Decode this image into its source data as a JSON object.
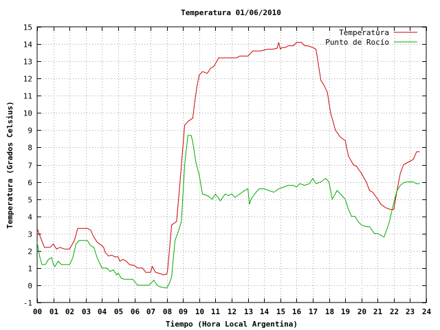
{
  "chart_data": {
    "type": "line",
    "title": "Temperatura 01/06/2010",
    "xlabel": "Tiempo (Hora Local Argentina)",
    "ylabel": "Temperatura (Grados Celsius)",
    "xlim": [
      0,
      24
    ],
    "ylim": [
      -1,
      15
    ],
    "x_ticks": [
      0,
      1,
      2,
      3,
      4,
      5,
      6,
      7,
      8,
      9,
      10,
      11,
      12,
      13,
      14,
      15,
      16,
      17,
      18,
      19,
      20,
      21,
      22,
      23,
      24
    ],
    "x_tick_labels": [
      "00",
      "01",
      "02",
      "03",
      "04",
      "05",
      "06",
      "07",
      "08",
      "09",
      "10",
      "11",
      "12",
      "13",
      "14",
      "15",
      "16",
      "17",
      "18",
      "19",
      "20",
      "21",
      "22",
      "23",
      "24"
    ],
    "y_ticks": [
      -1,
      0,
      1,
      2,
      3,
      4,
      5,
      6,
      7,
      8,
      9,
      10,
      11,
      12,
      13,
      14,
      15
    ],
    "y_tick_labels": [
      "-1",
      "0",
      "1",
      "2",
      "3",
      "4",
      "5",
      "6",
      "7",
      "8",
      "9",
      "10",
      "11",
      "12",
      "13",
      "14",
      "15"
    ],
    "grid": true,
    "legend_position": "top-right",
    "series": [
      {
        "name": "Temperatura",
        "color": "#cc0000",
        "x": [
          0,
          0.2,
          0.45,
          0.8,
          1,
          1.2,
          1.4,
          1.7,
          2,
          2.3,
          2.5,
          2.7,
          3,
          3.1,
          3.3,
          3.5,
          3.7,
          4,
          4.1,
          4.2,
          4.4,
          4.6,
          4.8,
          5,
          5.1,
          5.3,
          5.5,
          5.7,
          6,
          6.2,
          6.5,
          6.7,
          7,
          7.1,
          7.3,
          7.5,
          7.8,
          8,
          8.05,
          8.1,
          8.3,
          8.6,
          8.8,
          9.1,
          9.3,
          9.6,
          9.7,
          9.85,
          10,
          10.2,
          10.5,
          10.7,
          10.9,
          11.2,
          11.5,
          12,
          12.3,
          12.5,
          12.8,
          13,
          13.3,
          13.6,
          13.8,
          14.2,
          14.5,
          14.8,
          14.9,
          15,
          15.1,
          15.3,
          15.5,
          15.8,
          16,
          16.3,
          16.5,
          16.7,
          17,
          17.2,
          17.5,
          17.7,
          17.9,
          18.1,
          18.4,
          18.7,
          19,
          19.2,
          19.5,
          19.7,
          20,
          20.3,
          20.5,
          20.7,
          21,
          21.2,
          21.5,
          21.8,
          22,
          22.2,
          22.4,
          22.6,
          22.8,
          23,
          23.2,
          23.4,
          23.6
        ],
        "y": [
          3.3,
          2.8,
          2.2,
          2.2,
          2.4,
          2.1,
          2.2,
          2.1,
          2.1,
          2.6,
          3.3,
          3.3,
          3.3,
          3.3,
          3.2,
          2.8,
          2.5,
          2.3,
          2.2,
          1.9,
          1.7,
          1.75,
          1.65,
          1.65,
          1.4,
          1.5,
          1.4,
          1.2,
          1.15,
          1.0,
          1.0,
          0.75,
          0.75,
          1.1,
          0.75,
          0.7,
          0.6,
          0.65,
          0.9,
          1.4,
          3.5,
          3.7,
          5.8,
          9.3,
          9.5,
          9.7,
          10.5,
          11.5,
          12.2,
          12.4,
          12.3,
          12.6,
          12.7,
          13.2,
          13.2,
          13.2,
          13.2,
          13.3,
          13.3,
          13.3,
          13.6,
          13.6,
          13.6,
          13.7,
          13.7,
          13.75,
          14.1,
          13.7,
          13.8,
          13.8,
          13.9,
          13.9,
          14.1,
          14.1,
          13.9,
          13.9,
          13.8,
          13.7,
          11.9,
          11.6,
          11.2,
          10,
          9,
          8.6,
          8.4,
          7.5,
          7.0,
          6.9,
          6.5,
          6.0,
          5.5,
          5.4,
          5.0,
          4.7,
          4.5,
          4.4,
          4.4,
          5.5,
          6.5,
          7.0,
          7.1,
          7.2,
          7.3,
          7.75,
          7.75
        ]
      },
      {
        "name": "Punto de Rocío",
        "color": "#00aa00",
        "x": [
          0,
          0.15,
          0.3,
          0.5,
          0.7,
          0.9,
          1,
          1.1,
          1.3,
          1.5,
          1.8,
          2,
          2.2,
          2.4,
          2.6,
          2.9,
          3.1,
          3.3,
          3.5,
          3.7,
          3.8,
          4,
          4.3,
          4.5,
          4.7,
          4.9,
          5,
          5.2,
          5.4,
          5.6,
          5.9,
          6.2,
          6.4,
          6.6,
          6.9,
          7.2,
          7.4,
          7.6,
          7.9,
          8,
          8.2,
          8.3,
          8.5,
          8.7,
          8.9,
          9.1,
          9.3,
          9.5,
          9.6,
          9.8,
          10,
          10.2,
          10.5,
          10.8,
          11,
          11.3,
          11.6,
          11.8,
          12,
          12.2,
          12.5,
          12.8,
          13,
          13.1,
          13.2,
          13.5,
          13.7,
          14,
          14.3,
          14.6,
          14.9,
          15.2,
          15.5,
          15.8,
          16,
          16.2,
          16.5,
          16.8,
          17,
          17.2,
          17.5,
          17.8,
          18,
          18.2,
          18.5,
          18.8,
          19,
          19.2,
          19.4,
          19.6,
          19.8,
          20,
          20.3,
          20.5,
          20.8,
          21,
          21.2,
          21.4,
          21.7,
          22,
          22.2,
          22.4,
          22.6,
          22.8,
          23,
          23.2,
          23.4,
          23.6
        ],
        "y": [
          2.5,
          1.7,
          1.2,
          1.2,
          1.5,
          1.6,
          1.2,
          1.1,
          1.4,
          1.2,
          1.2,
          1.2,
          1.6,
          2.4,
          2.6,
          2.6,
          2.6,
          2.3,
          2.2,
          1.6,
          1.4,
          1.0,
          1.0,
          0.8,
          0.9,
          0.6,
          0.7,
          0.4,
          0.35,
          0.35,
          0.35,
          0.0,
          0.0,
          0.0,
          0.0,
          0.3,
          0.0,
          -0.1,
          -0.15,
          -0.15,
          0.2,
          0.5,
          2.6,
          3.1,
          3.7,
          7.0,
          8.7,
          8.7,
          8.3,
          7.1,
          6.4,
          5.3,
          5.2,
          5.0,
          5.3,
          4.9,
          5.3,
          5.2,
          5.3,
          5.1,
          5.3,
          5.5,
          5.6,
          4.7,
          5.0,
          5.4,
          5.6,
          5.6,
          5.5,
          5.4,
          5.6,
          5.7,
          5.8,
          5.8,
          5.7,
          5.9,
          5.8,
          5.9,
          6.2,
          5.9,
          6.0,
          6.2,
          6.0,
          5.0,
          5.5,
          5.2,
          5.0,
          4.4,
          4.0,
          4.0,
          3.7,
          3.5,
          3.4,
          3.4,
          3.0,
          3.0,
          2.9,
          2.8,
          3.6,
          4.8,
          5.5,
          5.8,
          5.95,
          6.0,
          6.0,
          6.0,
          5.9,
          5.9
        ]
      }
    ]
  }
}
